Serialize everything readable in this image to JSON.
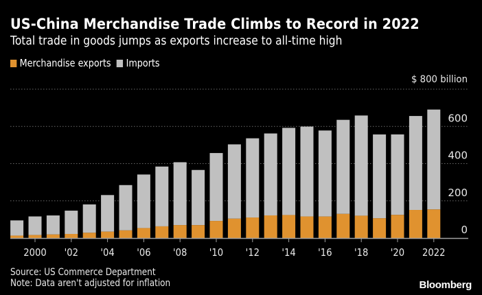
{
  "header": {
    "title": "US-China Merchandise Trade Climbs to Record in 2022",
    "subtitle": "Total trade in goods jumps as exports increase to all-time high"
  },
  "colors": {
    "background": "#000000",
    "exports": "#E0922F",
    "imports": "#C0C0C0",
    "gridline": "#6a6a6a",
    "axis": "#a0a0a0"
  },
  "chart_data": {
    "type": "bar",
    "stacked": true,
    "title": "US-China Merchandise Trade Climbs to Record in 2022",
    "subtitle": "Total trade in goods jumps as exports increase to all-time high",
    "xlabel": "",
    "ylabel": "",
    "y_unit_label": "$ 800 billion",
    "ylim": [
      0,
      800
    ],
    "yticks": [
      0,
      200,
      400,
      600,
      800
    ],
    "ytick_labels": [
      "0",
      "200",
      "400",
      "600",
      "$ 800 billion"
    ],
    "grid": true,
    "legend_position": "top-left",
    "categories": [
      1999,
      2000,
      2001,
      2002,
      2003,
      2004,
      2005,
      2006,
      2007,
      2008,
      2009,
      2010,
      2011,
      2012,
      2013,
      2014,
      2015,
      2016,
      2017,
      2018,
      2019,
      2020,
      2021,
      2022
    ],
    "xtick_years": [
      2000,
      2002,
      2004,
      2006,
      2008,
      2010,
      2012,
      2014,
      2016,
      2018,
      2020,
      2022
    ],
    "xtick_labels": [
      "2000",
      "'02",
      "'04",
      "'06",
      "'08",
      "'10",
      "'12",
      "'14",
      "'16",
      "'18",
      "'20",
      "2022"
    ],
    "series": [
      {
        "name": "Merchandise exports",
        "color": "#E0922F",
        "values": [
          13.1,
          16.2,
          19.2,
          22.1,
          28.4,
          34.4,
          41.2,
          53.7,
          62.9,
          69.7,
          69.5,
          91.9,
          104.1,
          110.5,
          121.7,
          123.7,
          115.9,
          115.6,
          129.8,
          120.1,
          106.4,
          124.5,
          151.1,
          153.8
        ]
      },
      {
        "name": "Imports",
        "color": "#C0C0C0",
        "values": [
          81.8,
          100.0,
          102.3,
          125.2,
          152.4,
          196.7,
          243.5,
          287.8,
          321.4,
          337.8,
          296.4,
          365.0,
          399.4,
          425.6,
          440.4,
          468.5,
          483.2,
          462.4,
          505.5,
          538.5,
          450.4,
          432.5,
          504.9,
          536.8
        ]
      }
    ]
  },
  "footer": {
    "source": "Source: US Commerce Department",
    "note": "Note: Data aren't adjusted for inflation",
    "brand": "Bloomberg"
  }
}
